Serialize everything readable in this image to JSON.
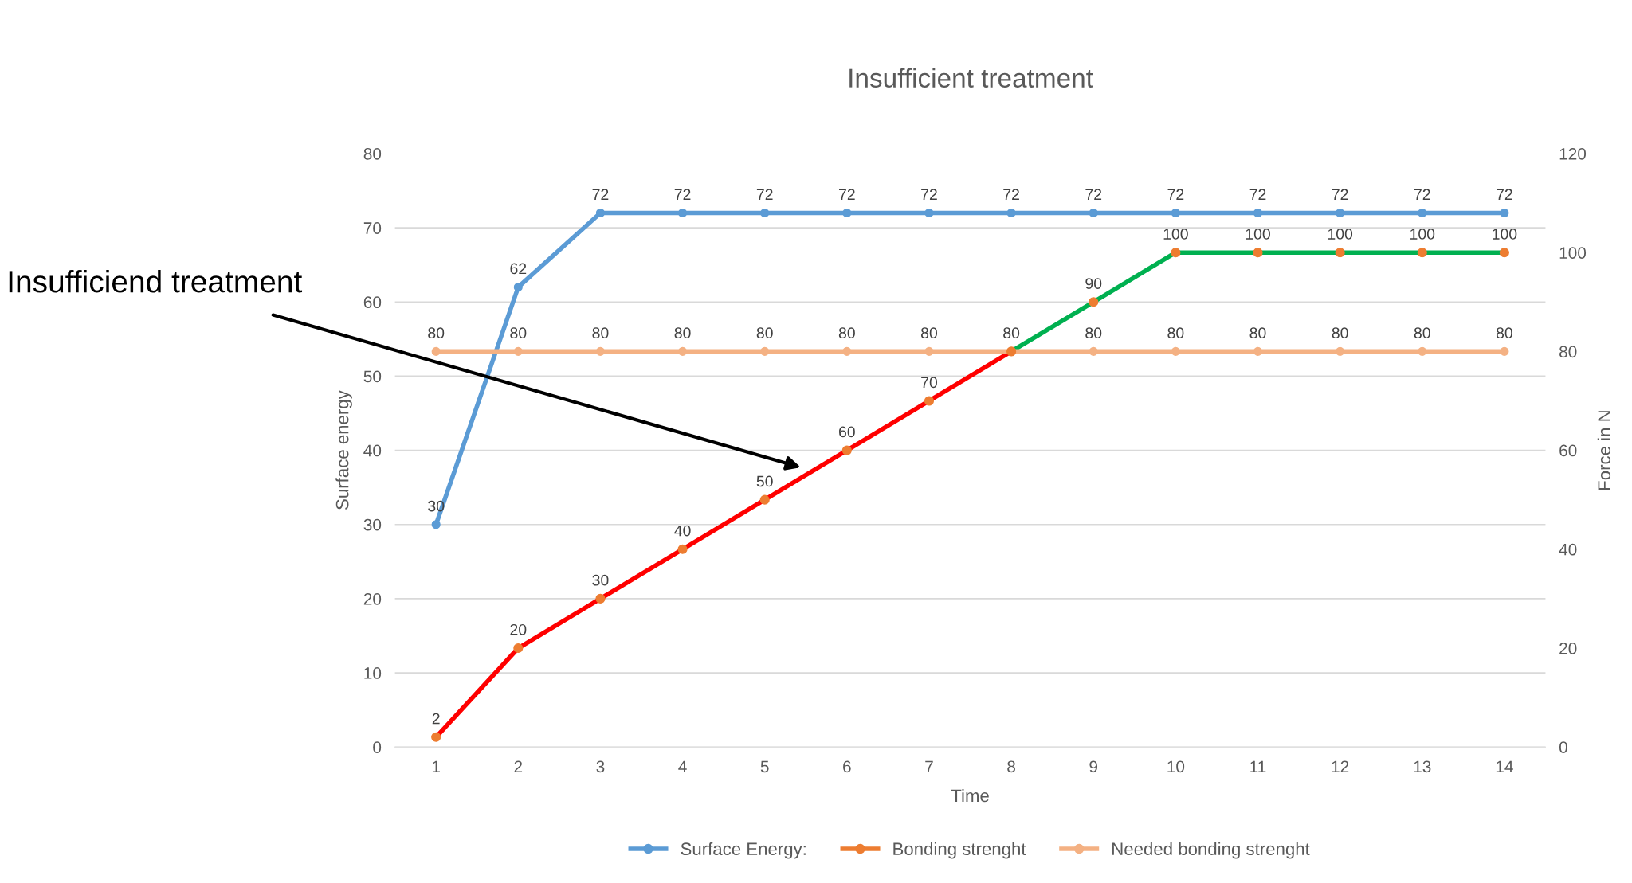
{
  "chart_data": {
    "type": "line",
    "title": "Insufficient treatment",
    "xlabel": "Time",
    "ylabel": "Surface energy",
    "y2label": "Force in N",
    "categories": [
      "1",
      "2",
      "3",
      "4",
      "5",
      "6",
      "7",
      "8",
      "9",
      "10",
      "11",
      "12",
      "13",
      "14"
    ],
    "series": [
      {
        "name": "Surface Energy:",
        "color": "#5b9bd5",
        "values": [
          30,
          62,
          72,
          72,
          72,
          72,
          72,
          72,
          72,
          72,
          72,
          72,
          72,
          72
        ],
        "value_labels": [
          "30",
          "62",
          "72",
          "72",
          "72",
          "72",
          "72",
          "72",
          "72",
          "72",
          "72",
          "72",
          "72",
          "72"
        ]
      },
      {
        "color": "#ff0000",
        "axis": "y2",
        "marker": "none",
        "values": [
          2,
          20,
          30,
          40,
          50,
          60,
          70,
          80,
          null,
          null,
          null,
          null,
          null,
          null
        ]
      },
      {
        "color": "#00b050",
        "axis": "y2",
        "marker": "none",
        "values": [
          null,
          null,
          null,
          null,
          null,
          null,
          null,
          80,
          90,
          100,
          100,
          100,
          100,
          100
        ]
      },
      {
        "name": "Bonding strenght",
        "type": "scatter",
        "color": "#ed7d31",
        "axis": "y2",
        "values": [
          2,
          20,
          30,
          40,
          50,
          60,
          70,
          80,
          90,
          100,
          100,
          100,
          100,
          100
        ],
        "value_labels": [
          "2",
          "20",
          "30",
          "40",
          "50",
          "60",
          "70",
          "80",
          "90",
          "100",
          "100",
          "100",
          "100",
          "100"
        ]
      },
      {
        "name": "Needed bonding strenght",
        "color": "#f4b183",
        "axis": "y2",
        "values": [
          80,
          80,
          80,
          80,
          80,
          80,
          80,
          80,
          80,
          80,
          80,
          80,
          80,
          80
        ],
        "value_labels": [
          "80",
          "80",
          "80",
          "80",
          "80",
          "80",
          "80",
          null,
          "80",
          "80",
          "80",
          "80",
          "80",
          "80"
        ]
      }
    ],
    "ylim": [
      0,
      80
    ],
    "yticks": [
      0,
      10,
      20,
      30,
      40,
      50,
      60,
      70,
      80
    ],
    "y2lim": [
      0,
      120
    ],
    "y2ticks": [
      0,
      20,
      40,
      60,
      80,
      100,
      120
    ],
    "grid": "y",
    "legend": "bottom",
    "marker": "circle",
    "annotations": [
      "Insufficiend treatment"
    ]
  }
}
